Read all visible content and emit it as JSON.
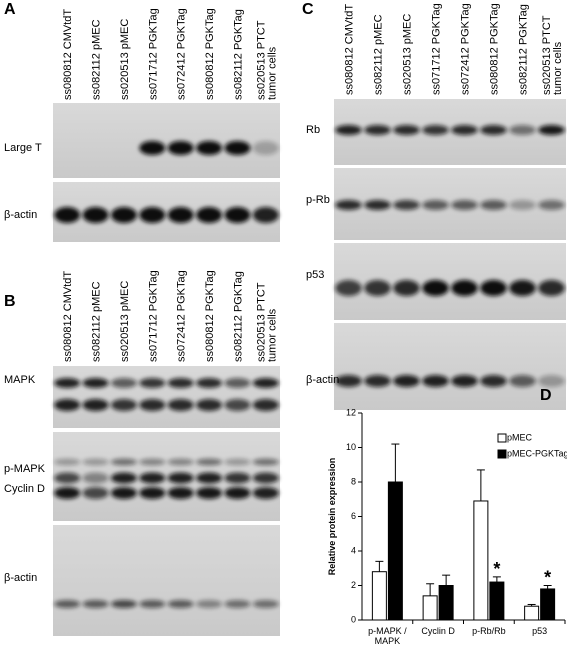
{
  "panels": {
    "A": {
      "letter": "A",
      "lanes": [
        [
          "ss080812 CMVtdT"
        ],
        [
          "ss082112 pMEC"
        ],
        [
          "ss020513 pMEC"
        ],
        [
          "ss071712 PGKTag"
        ],
        [
          "ss072412 PGKTag"
        ],
        [
          "ss080812 PGKTag"
        ],
        [
          "ss082112 PGKTag"
        ],
        [
          "ss020513 PTCT",
          "tumor cells"
        ]
      ],
      "blots": [
        {
          "labels": [
            "Large T"
          ]
        },
        {
          "labels": [
            "β-actin"
          ]
        }
      ]
    },
    "B": {
      "letter": "B",
      "lanes": [
        [
          "ss080812 CMVtdT"
        ],
        [
          "ss082112 pMEC"
        ],
        [
          "ss020513 pMEC"
        ],
        [
          "ss071712 PGKTag"
        ],
        [
          "ss072412 PGKTag"
        ],
        [
          "ss080812 PGKTag"
        ],
        [
          "ss082112 PGKTag"
        ],
        [
          "ss020513 PTCT",
          "tumor cells"
        ]
      ],
      "blots": [
        {
          "labels": [
            "MAPK"
          ]
        },
        {
          "labels": [
            "p-MAPK",
            "Cyclin D"
          ]
        },
        {
          "labels": [
            "β-actin"
          ]
        }
      ]
    },
    "C": {
      "letter": "C",
      "lanes": [
        [
          "ss080812 CMVtdT"
        ],
        [
          "ss082112 pMEC"
        ],
        [
          "ss020513 pMEC"
        ],
        [
          "ss071712 PGKTag"
        ],
        [
          "ss072412 PGKTag"
        ],
        [
          "ss080812 PGKTag"
        ],
        [
          "ss082112 PGKTag"
        ],
        [
          "ss020513 PTCT",
          "tumor cells"
        ]
      ],
      "blots": [
        {
          "labels": [
            "Rb"
          ]
        },
        {
          "labels": [
            "p-Rb"
          ]
        },
        {
          "labels": [
            "p53"
          ]
        },
        {
          "labels": [
            "β-actin"
          ]
        }
      ]
    }
  },
  "chart_data": {
    "type": "bar",
    "panel": "D",
    "y_label": "Relative protein expression",
    "categories": [
      "p-MAPK / MAPK",
      "Cyclin D",
      "p-Rb/Rb",
      "p53"
    ],
    "series": [
      {
        "name": "pMEC",
        "color": "#ffffff",
        "values": [
          2.8,
          1.4,
          6.9,
          0.8
        ],
        "errors": [
          0.6,
          0.7,
          1.8,
          0.1
        ]
      },
      {
        "name": "pMEC-PGKTag",
        "color": "#000000",
        "values": [
          8.0,
          2.0,
          2.2,
          1.8
        ],
        "errors": [
          2.2,
          0.6,
          0.3,
          0.2
        ],
        "markers": [
          null,
          null,
          "*",
          "*"
        ]
      }
    ],
    "ylim": [
      0,
      12
    ],
    "yticks": [
      0,
      2,
      4,
      6,
      8,
      10,
      12
    ],
    "legend": "upper right"
  }
}
